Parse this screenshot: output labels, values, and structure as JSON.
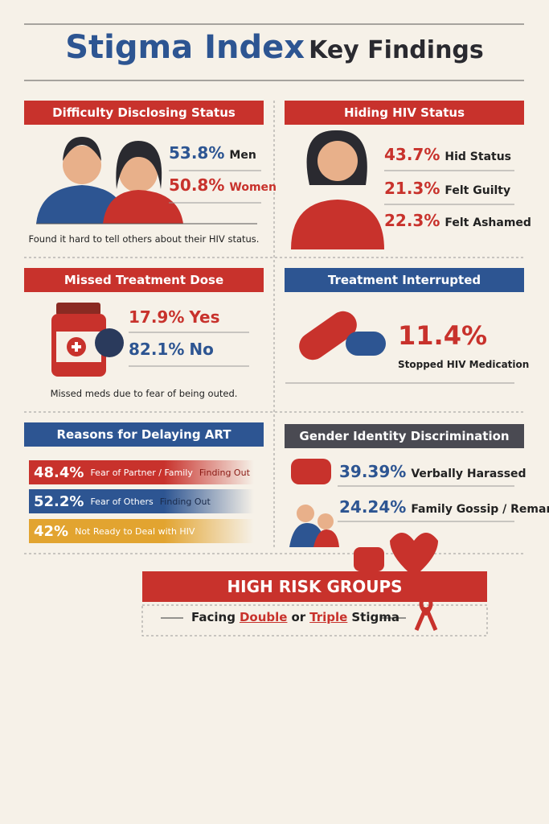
{
  "title": {
    "main": "Stigma Index",
    "sub": "Key Findings"
  },
  "sections": [
    {
      "heading": "Difficulty Disclosing Status",
      "stats": [
        {
          "value": "53.8%",
          "label": "Men"
        },
        {
          "value": "50.8%",
          "label": "Women"
        }
      ],
      "note": "Found it hard to tell others about their HIV status."
    },
    {
      "heading": "Hiding HIV Status",
      "stats": [
        {
          "value": "43.7%",
          "label": "Hid Status"
        },
        {
          "value": "21.3%",
          "label": "Felt Guilty"
        },
        {
          "value": "22.3%",
          "label": "Felt Ashamed"
        }
      ]
    },
    {
      "heading": "Missed Treatment Dose",
      "stats": [
        {
          "value": "17.9%",
          "label": "Yes"
        },
        {
          "value": "82.1%",
          "label": "No"
        }
      ],
      "note": "Missed meds due to fear of being outed."
    },
    {
      "heading": "Treatment Interrupted",
      "stats": [
        {
          "value": "11.4%",
          "label": "Stopped HIV Medication"
        }
      ]
    },
    {
      "heading": "Reasons for Delaying ART",
      "stats": [
        {
          "value": "48.4%",
          "label": "Fear of Partner / Family",
          "extra": "Finding Out"
        },
        {
          "value": "52.2%",
          "label": "Fear of Others",
          "extra": "Finding Out"
        },
        {
          "value": "42%",
          "label": "Not Ready to Deal with HIV"
        }
      ]
    },
    {
      "heading": "Gender Identity Discrimination",
      "stats": [
        {
          "value": "39.39%",
          "label": "Verbally Harassed"
        },
        {
          "value": "24.24%",
          "label": "Family Gossip / Remarks"
        }
      ]
    }
  ],
  "banner": {
    "title": "HIGH RISK GROUPS",
    "text": [
      "Facing",
      "Double",
      "or",
      "Triple",
      "Stigma"
    ]
  }
}
